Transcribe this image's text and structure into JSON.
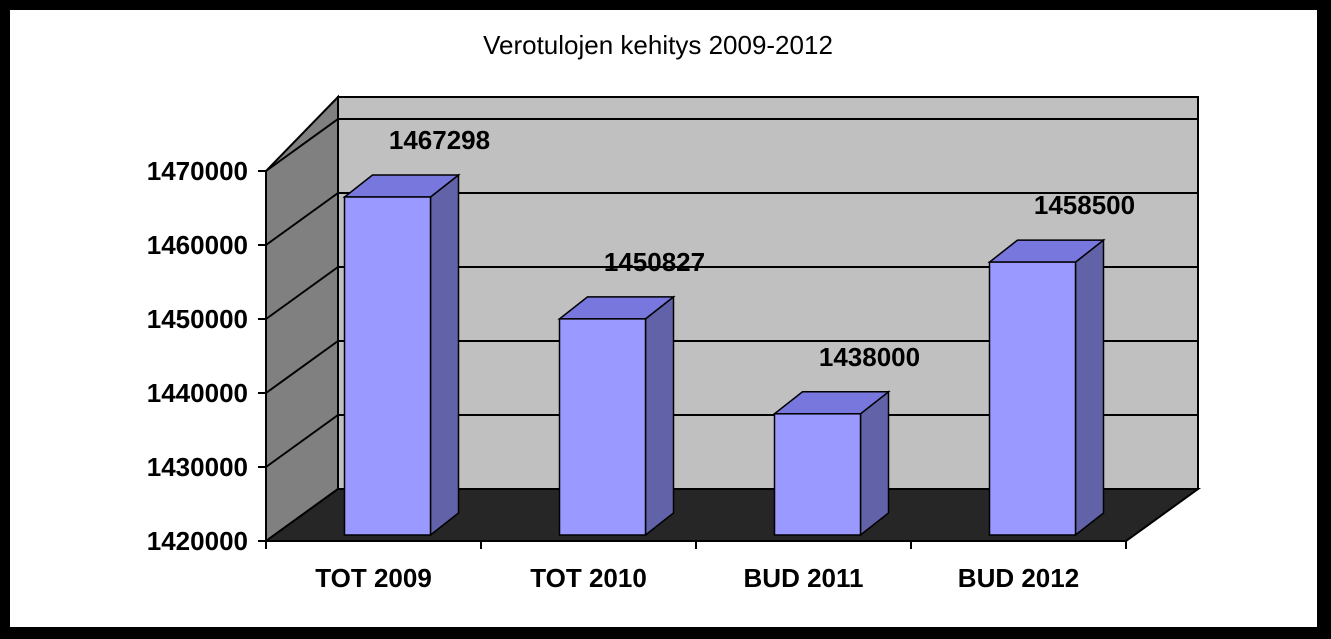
{
  "chart_data": {
    "type": "bar",
    "title": "Verotulojen kehitys 2009-2012",
    "categories": [
      "TOT 2009",
      "TOT 2010",
      "BUD 2011",
      "BUD 2012"
    ],
    "values": [
      1467298,
      1450827,
      1438000,
      1458500
    ],
    "data_labels": [
      "1467298",
      "1450827",
      "1438000",
      "1458500"
    ],
    "y_ticks": [
      "1420000",
      "1430000",
      "1440000",
      "1450000",
      "1460000",
      "1470000"
    ],
    "ylim": [
      1420000,
      1470000
    ],
    "grid": true,
    "legend": "none",
    "colors": {
      "bar_front": "#9999ff",
      "bar_top": "#7777dd",
      "bar_side": "#6262a8",
      "back_wall": "#c0c0c0",
      "side_wall": "#808080",
      "floor": "#262626"
    }
  }
}
